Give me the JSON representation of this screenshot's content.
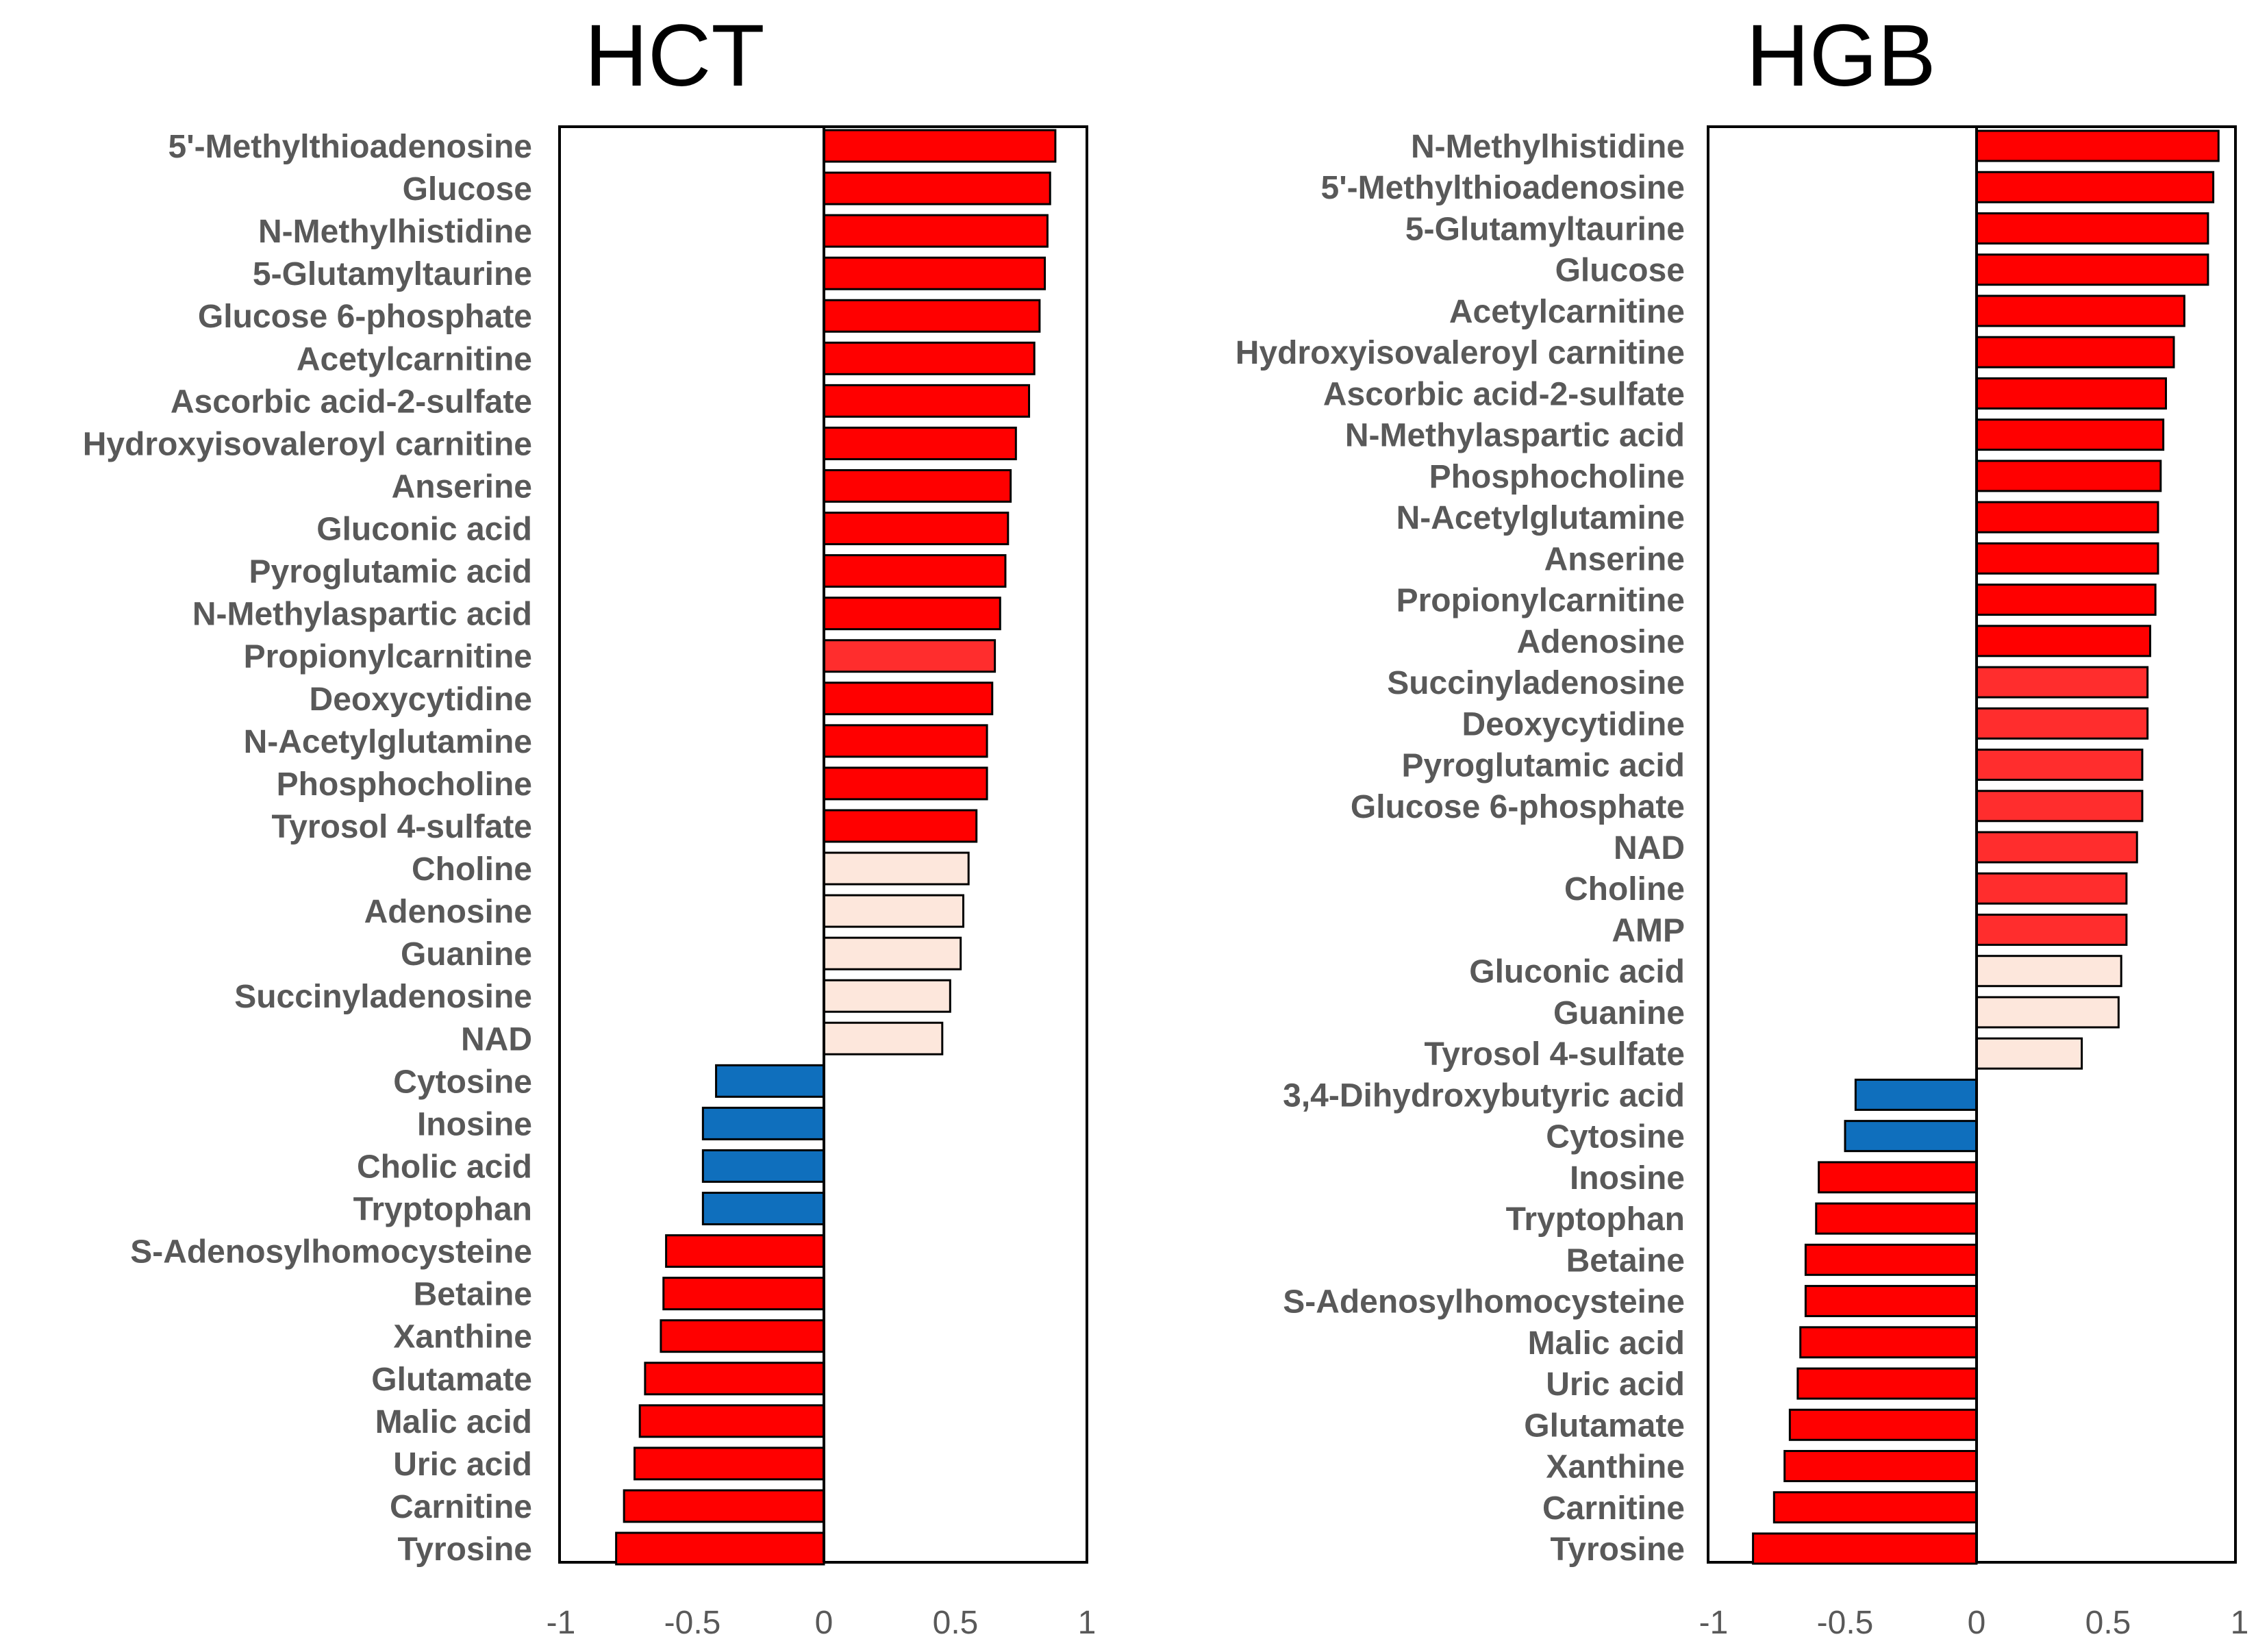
{
  "colors": {
    "strong_positive": "#ff0000",
    "moderate_positive": "#ff2d2d",
    "weak_positive": "#fde7dc",
    "negative_blue": "#0f6fbd",
    "bar_outline": "#000000",
    "label_text": "#595959"
  },
  "chart_data": [
    {
      "type": "bar",
      "orientation": "horizontal",
      "title": "HCT",
      "xlim": [
        -1,
        1
      ],
      "xticks": [
        "-1",
        "-0.5",
        "0",
        "0.5",
        "1"
      ],
      "xtick_values": [
        -1,
        -0.5,
        0,
        0.5,
        1
      ],
      "categories": [
        "5'-Methylthioadenosine",
        "Glucose",
        "N-Methylhistidine",
        "5-Glutamyltaurine",
        "Glucose 6-phosphate",
        "Acetylcarnitine",
        "Ascorbic acid-2-sulfate",
        "Hydroxyisovaleroyl carnitine",
        "Anserine",
        "Gluconic acid",
        "Pyroglutamic acid",
        "N-Methylaspartic acid",
        "Propionylcarnitine",
        "Deoxycytidine",
        "N-Acetylglutamine",
        "Phosphocholine",
        "Tyrosol 4-sulfate",
        "Choline",
        "Adenosine",
        "Guanine",
        "Succinyladenosine",
        "NAD",
        "Cytosine",
        "Inosine",
        "Cholic acid",
        "Tryptophan",
        "S-Adenosylhomocysteine",
        "Betaine",
        "Xanthine",
        "Glutamate",
        "Malic acid",
        "Uric acid",
        "Carnitine",
        "Tyrosine"
      ],
      "values": [
        0.88,
        0.86,
        0.85,
        0.84,
        0.82,
        0.8,
        0.78,
        0.73,
        0.71,
        0.7,
        0.69,
        0.67,
        0.65,
        0.64,
        0.62,
        0.62,
        0.58,
        0.55,
        0.53,
        0.52,
        0.48,
        0.45,
        -0.41,
        -0.46,
        -0.46,
        -0.46,
        -0.6,
        -0.61,
        -0.62,
        -0.68,
        -0.7,
        -0.72,
        -0.76,
        -0.79
      ],
      "color_groups": [
        "strong_positive",
        "strong_positive",
        "strong_positive",
        "strong_positive",
        "strong_positive",
        "strong_positive",
        "strong_positive",
        "strong_positive",
        "strong_positive",
        "strong_positive",
        "strong_positive",
        "strong_positive",
        "moderate_positive",
        "strong_positive",
        "strong_positive",
        "strong_positive",
        "strong_positive",
        "weak_positive",
        "weak_positive",
        "weak_positive",
        "weak_positive",
        "weak_positive",
        "negative_blue",
        "negative_blue",
        "negative_blue",
        "negative_blue",
        "strong_positive",
        "strong_positive",
        "strong_positive",
        "strong_positive",
        "strong_positive",
        "strong_positive",
        "strong_positive",
        "strong_positive"
      ]
    },
    {
      "type": "bar",
      "orientation": "horizontal",
      "title": "HGB",
      "xlim": [
        -1,
        1
      ],
      "xticks": [
        "-1",
        "-0.5",
        "0",
        "0.5",
        "1"
      ],
      "xtick_values": [
        -1,
        -0.5,
        0,
        0.5,
        1
      ],
      "categories": [
        "N-Methylhistidine",
        "5'-Methylthioadenosine",
        "5-Glutamyltaurine",
        "Glucose",
        "Acetylcarnitine",
        "Hydroxyisovaleroyl carnitine",
        "Ascorbic acid-2-sulfate",
        "N-Methylaspartic acid",
        "Phosphocholine",
        "N-Acetylglutamine",
        "Anserine",
        "Propionylcarnitine",
        "Adenosine",
        "Succinyladenosine",
        "Deoxycytidine",
        "Pyroglutamic acid",
        "Glucose 6-phosphate",
        "NAD",
        "Choline",
        "AMP",
        "Gluconic acid",
        "Guanine",
        "Tyrosol 4-sulfate",
        "3,4-Dihydroxybutyric acid",
        "Cytosine",
        "Inosine",
        "Tryptophan",
        "Betaine",
        "S-Adenosylhomocysteine",
        "Malic acid",
        "Uric acid",
        "Glutamate",
        "Xanthine",
        "Carnitine",
        "Tyrosine"
      ],
      "values": [
        0.92,
        0.9,
        0.88,
        0.88,
        0.79,
        0.75,
        0.72,
        0.71,
        0.7,
        0.69,
        0.69,
        0.68,
        0.66,
        0.65,
        0.65,
        0.63,
        0.63,
        0.61,
        0.57,
        0.57,
        0.55,
        0.54,
        0.4,
        -0.46,
        -0.5,
        -0.6,
        -0.61,
        -0.65,
        -0.65,
        -0.67,
        -0.68,
        -0.71,
        -0.73,
        -0.77,
        -0.85
      ],
      "color_groups": [
        "strong_positive",
        "strong_positive",
        "strong_positive",
        "strong_positive",
        "strong_positive",
        "strong_positive",
        "strong_positive",
        "strong_positive",
        "strong_positive",
        "strong_positive",
        "strong_positive",
        "strong_positive",
        "strong_positive",
        "moderate_positive",
        "moderate_positive",
        "moderate_positive",
        "moderate_positive",
        "moderate_positive",
        "moderate_positive",
        "moderate_positive",
        "weak_positive",
        "weak_positive",
        "weak_positive",
        "negative_blue",
        "negative_blue",
        "strong_positive",
        "strong_positive",
        "strong_positive",
        "strong_positive",
        "strong_positive",
        "strong_positive",
        "strong_positive",
        "strong_positive",
        "strong_positive",
        "strong_positive"
      ]
    }
  ]
}
